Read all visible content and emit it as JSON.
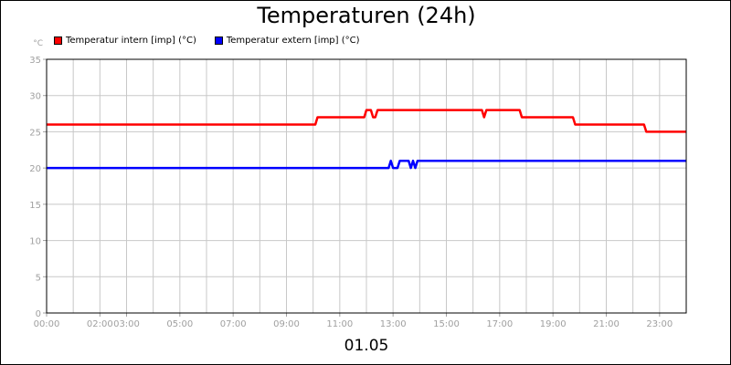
{
  "chart_data": {
    "type": "line",
    "title": "Temperaturen (24h)",
    "ylabel": "°C",
    "xlabel": "01.05",
    "ylim": [
      0,
      35
    ],
    "xlim": [
      "00:00",
      "24:00"
    ],
    "y_ticks": [
      "0",
      "5",
      "10",
      "15",
      "20",
      "25",
      "30",
      "35"
    ],
    "x_tick_labels": [
      "00:00",
      "02:00",
      "03:00",
      "05:00",
      "07:00",
      "09:00",
      "11:00",
      "13:00",
      "15:00",
      "17:00",
      "19:00",
      "21:00",
      "23:00"
    ],
    "grid": true,
    "legend_position": "top-left",
    "series": [
      {
        "name": "Temperatur intern [imp] (°C)",
        "color": "#ff0000",
        "points": [
          [
            "00:00",
            26
          ],
          [
            "10:05",
            26
          ],
          [
            "10:10",
            27
          ],
          [
            "11:55",
            27
          ],
          [
            "12:00",
            28
          ],
          [
            "12:10",
            28
          ],
          [
            "12:15",
            27
          ],
          [
            "12:20",
            27
          ],
          [
            "12:25",
            28
          ],
          [
            "16:20",
            28
          ],
          [
            "16:25",
            27
          ],
          [
            "16:30",
            28
          ],
          [
            "17:45",
            28
          ],
          [
            "17:50",
            27
          ],
          [
            "19:45",
            27
          ],
          [
            "19:50",
            26
          ],
          [
            "22:25",
            26
          ],
          [
            "22:30",
            25
          ],
          [
            "23:59",
            25
          ]
        ]
      },
      {
        "name": "Temperatur extern [imp] (°C)",
        "color": "#0000ff",
        "points": [
          [
            "00:00",
            20
          ],
          [
            "12:50",
            20
          ],
          [
            "12:55",
            21
          ],
          [
            "13:00",
            20
          ],
          [
            "13:10",
            20
          ],
          [
            "13:15",
            21
          ],
          [
            "13:35",
            21
          ],
          [
            "13:40",
            20
          ],
          [
            "13:45",
            21
          ],
          [
            "13:50",
            20
          ],
          [
            "13:55",
            21
          ],
          [
            "23:59",
            21
          ]
        ]
      }
    ]
  }
}
